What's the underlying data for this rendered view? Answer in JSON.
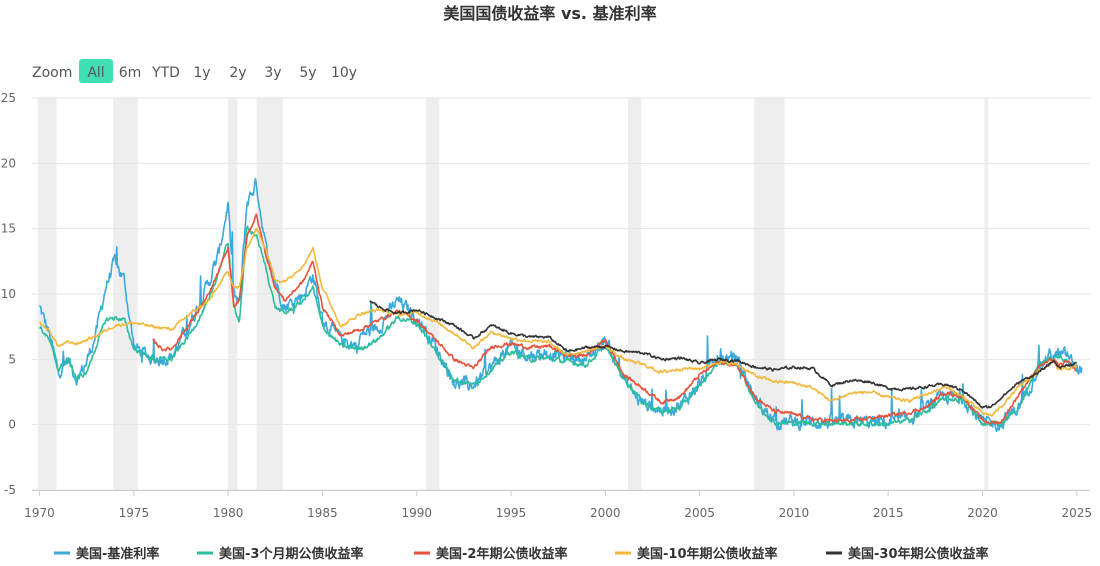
{
  "chart_data": {
    "type": "line",
    "title": "美国国债收益率 vs. 基准利率",
    "xlabel": "",
    "ylabel": "",
    "xlim": [
      1969.6,
      2025.7
    ],
    "ylim": [
      -5,
      25
    ],
    "x_ticks": [
      "1970",
      "1975",
      "1980",
      "1985",
      "1990",
      "1995",
      "2000",
      "2005",
      "2010",
      "2015",
      "2020",
      "2025"
    ],
    "y_ticks": [
      "25",
      "20",
      "15",
      "10",
      "5",
      "0",
      "-5"
    ],
    "grid": true,
    "legend_position": "bottom",
    "zoom": {
      "label": "Zoom",
      "selected": "All",
      "options": [
        "All",
        "6m",
        "YTD",
        "1y",
        "2y",
        "3y",
        "5y",
        "10y"
      ]
    },
    "recessions": [
      [
        1969.9,
        1970.9
      ],
      [
        1973.9,
        1975.2
      ],
      [
        1980.0,
        1980.5
      ],
      [
        1981.5,
        1982.9
      ],
      [
        1990.5,
        1991.2
      ],
      [
        2001.2,
        2001.9
      ],
      [
        2007.9,
        2009.5
      ],
      [
        2020.1,
        2020.3
      ]
    ],
    "series": [
      {
        "name": "美国-基准利率",
        "color": "#3aa9dc",
        "noise": 0.8,
        "x": [
          1970,
          1970.5,
          1971,
          1971.5,
          1972,
          1972.5,
          1973,
          1973.5,
          1974,
          1974.5,
          1975,
          1975.5,
          1976,
          1977,
          1978,
          1979,
          1979.5,
          1980,
          1980.3,
          1980.6,
          1981,
          1981.5,
          1982,
          1982.5,
          1983,
          1984,
          1984.5,
          1985,
          1986,
          1986.9,
          1987,
          1988,
          1989,
          1990,
          1991,
          1992,
          1993,
          1994,
          1995,
          1996,
          1997,
          1998,
          1999,
          2000,
          2001,
          2001.8,
          2002,
          2003,
          2004,
          2005,
          2006,
          2007,
          2008,
          2009,
          2010,
          2015,
          2015.9,
          2016,
          2017,
          2018,
          2019,
          2020,
          2020.5,
          2021,
          2022,
          2022.5,
          2023,
          2023.6,
          2024,
          2024.5,
          2025,
          2025.3
        ],
        "y": [
          9,
          7,
          4,
          5,
          3.5,
          4.8,
          7,
          10.5,
          12.5,
          11,
          6,
          5.5,
          5,
          5.2,
          7.8,
          11,
          13,
          17,
          10,
          9,
          17,
          18.5,
          13.5,
          11,
          9,
          10,
          11.5,
          8,
          6.5,
          6,
          6.8,
          7.5,
          9.5,
          8.2,
          6,
          3.2,
          3,
          4.5,
          6,
          5.3,
          5.5,
          5.2,
          5,
          6.5,
          3.5,
          1.8,
          1.7,
          1.1,
          1.5,
          3.2,
          5,
          5.1,
          1.8,
          0.2,
          0.2,
          0.2,
          0.3,
          0.4,
          1.2,
          2.2,
          2,
          0.1,
          0.1,
          0.1,
          1.5,
          3,
          4.6,
          5.3,
          5.3,
          5.3,
          4.3,
          4.3
        ]
      },
      {
        "name": "美国-3个月期公债收益率",
        "color": "#2dbd9c",
        "noise": 0.3,
        "x": [
          1970,
          1970.5,
          1971,
          1971.5,
          1972,
          1972.5,
          1973,
          1973.5,
          1974,
          1974.5,
          1975,
          1976,
          1977,
          1978,
          1979,
          1980,
          1980.3,
          1980.6,
          1981,
          1981.5,
          1982,
          1982.5,
          1983,
          1984,
          1984.5,
          1985,
          1986,
          1987,
          1988,
          1989,
          1990,
          1991,
          1992,
          1993,
          1994,
          1995,
          1996,
          1997,
          1998,
          1999,
          2000,
          2001,
          2002,
          2003,
          2004,
          2005,
          2006,
          2007,
          2008,
          2009,
          2010,
          2015,
          2016,
          2017,
          2018,
          2019,
          2020,
          2020.5,
          2021,
          2022,
          2023,
          2024,
          2025
        ],
        "y": [
          7.5,
          6.5,
          4.2,
          5,
          3.5,
          4,
          6,
          8,
          8.2,
          8,
          5.8,
          5,
          5,
          7,
          9.5,
          14,
          9,
          8,
          15,
          14.5,
          12,
          9,
          8.5,
          9.5,
          10.5,
          7.5,
          6,
          5.8,
          6.6,
          8.2,
          7.8,
          5.6,
          3.5,
          3,
          4.3,
          5.6,
          5,
          5.1,
          4.8,
          4.6,
          6,
          3.5,
          1.7,
          1,
          1.3,
          3,
          4.8,
          4.6,
          1.6,
          0.15,
          0.15,
          0.05,
          0.3,
          1,
          2,
          1.9,
          0.1,
          0.1,
          0.05,
          1.5,
          4.6,
          5.3,
          4.3
        ]
      },
      {
        "name": "美国-2年期公债收益率",
        "color": "#e6533a",
        "noise": 0.22,
        "x": [
          1976,
          1976.5,
          1977,
          1978,
          1979,
          1980,
          1980.3,
          1980.6,
          1981,
          1981.5,
          1982,
          1982.5,
          1983,
          1984,
          1984.5,
          1985,
          1986,
          1987,
          1988,
          1989,
          1990,
          1991,
          1992,
          1993,
          1994,
          1995,
          1996,
          1997,
          1998,
          1999,
          2000,
          2001,
          2002,
          2003,
          2004,
          2005,
          2006,
          2007,
          2008,
          2009,
          2010,
          2011,
          2012,
          2013,
          2014,
          2015,
          2016,
          2017,
          2018,
          2019,
          2020,
          2020.5,
          2021,
          2022,
          2022.5,
          2023,
          2023.8,
          2024,
          2024.5,
          2025
        ],
        "y": [
          6.5,
          5.8,
          5.8,
          7.8,
          10,
          13.5,
          9,
          9.5,
          14.5,
          16,
          13,
          10.5,
          9.5,
          11,
          12.5,
          9,
          6.8,
          7.3,
          8,
          8.7,
          8,
          6.5,
          5,
          4.3,
          6,
          6.2,
          5.9,
          6,
          5.3,
          5.3,
          6.5,
          3.8,
          2.8,
          1.7,
          2.2,
          3.8,
          4.8,
          4.5,
          2,
          1,
          0.8,
          0.4,
          0.3,
          0.3,
          0.5,
          0.7,
          0.9,
          1.3,
          2.5,
          2.1,
          0.3,
          0.15,
          0.2,
          2.5,
          3.5,
          4.5,
          5,
          4.5,
          4.8,
          4.1
        ]
      },
      {
        "name": "美国-10年期公债收益率",
        "color": "#f3b83c",
        "noise": 0.18,
        "x": [
          1970,
          1970.5,
          1971,
          1971.5,
          1972,
          1973,
          1974,
          1975,
          1976,
          1977,
          1978,
          1979,
          1980,
          1980.3,
          1980.6,
          1981,
          1981.5,
          1982,
          1982.5,
          1983,
          1984,
          1984.5,
          1985,
          1986,
          1987,
          1988,
          1989,
          1990,
          1991,
          1992,
          1993,
          1994,
          1995,
          1996,
          1997,
          1998,
          1999,
          2000,
          2001,
          2002,
          2003,
          2004,
          2005,
          2006,
          2007,
          2008,
          2009,
          2010,
          2011,
          2012,
          2013,
          2014,
          2015,
          2016,
          2017,
          2018,
          2019,
          2020,
          2020.5,
          2021,
          2022,
          2023,
          2023.8,
          2024,
          2025
        ],
        "y": [
          7.8,
          7.2,
          6,
          6.3,
          6.2,
          6.8,
          7.6,
          7.8,
          7.5,
          7.3,
          8.5,
          9.5,
          11.8,
          10.5,
          10.5,
          13.5,
          15,
          13.5,
          11,
          11,
          12.2,
          13.5,
          10.5,
          7.5,
          8.5,
          8.8,
          8.4,
          8.6,
          7.9,
          7,
          5.9,
          7.1,
          6.6,
          6.4,
          6.3,
          5.3,
          5.7,
          6,
          5,
          4.6,
          4,
          4.3,
          4.3,
          4.8,
          4.6,
          3.7,
          3.3,
          3.2,
          2.8,
          1.8,
          2.4,
          2.5,
          2.1,
          1.8,
          2.3,
          2.9,
          2.1,
          0.9,
          0.7,
          1.4,
          3,
          4.1,
          4.8,
          4.2,
          4.4
        ]
      },
      {
        "name": "美国-30年期公债收益率",
        "color": "#333333",
        "noise": 0.16,
        "x": [
          1987.5,
          1988,
          1989,
          1990,
          1991,
          1992,
          1993,
          1994,
          1995,
          1996,
          1997,
          1998,
          1999,
          2000,
          2001,
          2002,
          2003,
          2004,
          2005,
          2006,
          2007,
          2008,
          2009,
          2010,
          2011,
          2012,
          2013,
          2014,
          2015,
          2016,
          2017,
          2018,
          2019,
          2020,
          2020.5,
          2021,
          2022,
          2023,
          2023.8,
          2024,
          2025
        ],
        "y": [
          9.5,
          9,
          8.5,
          8.8,
          8.2,
          7.6,
          6.6,
          7.6,
          7,
          6.7,
          6.7,
          5.6,
          5.9,
          6,
          5.6,
          5.5,
          5,
          5.1,
          4.7,
          5,
          4.9,
          4.4,
          4.2,
          4.4,
          4.3,
          3,
          3.4,
          3.3,
          2.8,
          2.7,
          2.9,
          3.1,
          2.6,
          1.3,
          1.4,
          2.1,
          3.3,
          4,
          4.9,
          4.4,
          4.7
        ]
      }
    ]
  }
}
